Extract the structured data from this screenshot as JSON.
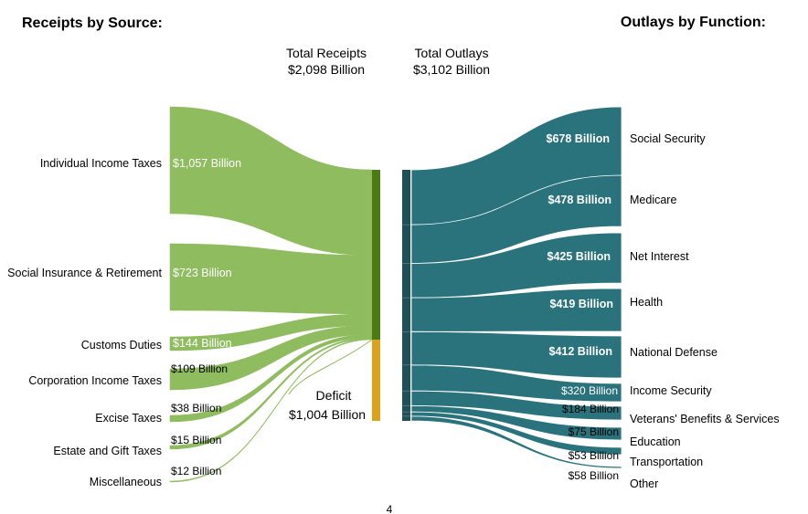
{
  "chart_data": {
    "type": "sankey",
    "receipts_title": "Receipts by Source:",
    "outlays_title": "Outlays by Function:",
    "total_receipts_label": "Total Receipts",
    "total_receipts_value": "$2,098 Billion",
    "total_outlays_label": "Total Outlays",
    "total_outlays_value": "$3,102 Billion",
    "deficit_label": "Deficit",
    "deficit_value": "$1,004 Billion",
    "deficit_amount": 1004,
    "page_number": "4",
    "colors": {
      "receipts": "#8fbc5f",
      "receipts_bar": "#4d7a12",
      "deficit": "#d9a31c",
      "outlays": "#2a737c",
      "outlays_bar": "#1f5058"
    },
    "receipts": [
      {
        "name": "Individual Income Taxes",
        "value": 1057,
        "label": "$1,057 Billion"
      },
      {
        "name": "Social Insurance & Retirement",
        "value": 723,
        "label": "$723 Billion"
      },
      {
        "name": "Customs Duties",
        "value": 144,
        "label": "$144 Billion"
      },
      {
        "name": "Corporation Income Taxes",
        "value": 109,
        "label": "$109 Billion"
      },
      {
        "name": "Excise Taxes",
        "value": 38,
        "label": "$38 Billion"
      },
      {
        "name": "Estate and Gift Taxes",
        "value": 15,
        "label": "$15 Billion"
      },
      {
        "name": "Miscellaneous",
        "value": 12,
        "label": "$12 Billion"
      }
    ],
    "outlays": [
      {
        "name": "Social Security",
        "value": 678,
        "label": "$678 Billion"
      },
      {
        "name": "Medicare",
        "value": 478,
        "label": "$478 Billion"
      },
      {
        "name": "Net Interest",
        "value": 425,
        "label": "$425 Billion"
      },
      {
        "name": "Health",
        "value": 419,
        "label": "$419 Billion"
      },
      {
        "name": "National Defense",
        "value": 412,
        "label": "$412 Billion"
      },
      {
        "name": "Income Security",
        "value": 320,
        "label": "$320 Billion"
      },
      {
        "name": "Veterans' Benefits & Services",
        "value": 184,
        "label": "$184 Billion"
      },
      {
        "name": "Education",
        "value": 75,
        "label": "$75 Billion"
      },
      {
        "name": "Transportation",
        "value": 53,
        "label": "$53 Billion"
      },
      {
        "name": "Other",
        "value": 58,
        "label": "$58 Billion"
      }
    ]
  }
}
